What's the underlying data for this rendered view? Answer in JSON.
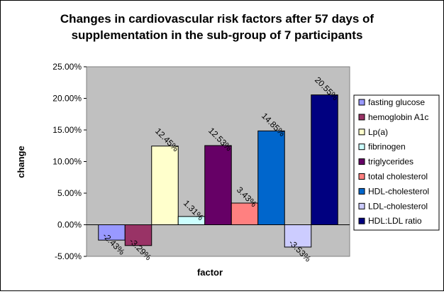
{
  "chart_data": {
    "type": "bar",
    "title_lines": [
      "Changes in cardiovascular risk factors after 57 days of",
      "supplementation in the sub-group of 7 participants"
    ],
    "xlabel": "factor",
    "ylabel": "change",
    "ylim": [
      -5,
      25
    ],
    "yticks": [
      {
        "value": 25,
        "label": "25.00%"
      },
      {
        "value": 20,
        "label": "20.00%"
      },
      {
        "value": 15,
        "label": "15.00%"
      },
      {
        "value": 10,
        "label": "10.00%"
      },
      {
        "value": 5,
        "label": "5.00%"
      },
      {
        "value": 0,
        "label": "0.00%"
      },
      {
        "value": -5,
        "label": "-5.00%"
      }
    ],
    "grid": false,
    "legend_position": "right",
    "plot_background": "#c0c0c0",
    "series": [
      {
        "name": "fasting glucose",
        "value": -2.43,
        "label": "-2.43%",
        "color": "#9999ff"
      },
      {
        "name": "hemoglobin A1c",
        "value": -3.29,
        "label": "-3.29%",
        "color": "#993366"
      },
      {
        "name": "Lp(a)",
        "value": 12.45,
        "label": "12.45%",
        "color": "#ffffcc"
      },
      {
        "name": "fibrinogen",
        "value": 1.31,
        "label": "1.31%",
        "color": "#ccffff"
      },
      {
        "name": "triglycerides",
        "value": 12.53,
        "label": "12.53%",
        "color": "#660066"
      },
      {
        "name": "total cholesterol",
        "value": 3.43,
        "label": "3.43%",
        "color": "#ff8080"
      },
      {
        "name": "HDL-cholesterol",
        "value": 14.85,
        "label": "14.85%",
        "color": "#0066cc"
      },
      {
        "name": "LDL-cholesterol",
        "value": -3.53,
        "label": "-3.53%",
        "color": "#ccccff"
      },
      {
        "name": "HDL:LDL ratio",
        "value": 20.55,
        "label": "20.55%",
        "color": "#000080"
      }
    ]
  }
}
